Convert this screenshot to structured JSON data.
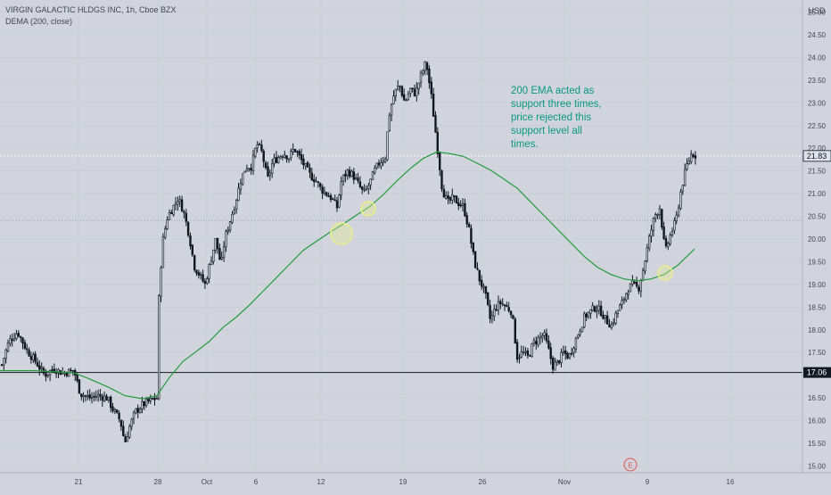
{
  "chart_data": {
    "type": "candlestick",
    "title": "VIRGIN GALACTIC HLDGS INC, 1h, Cboe BZX",
    "indicator_label": "DEMA (200, close)",
    "currency": "USD",
    "annotation": [
      "200 EMA acted as",
      "support three times,",
      "price rejected this",
      "support level all",
      "times."
    ],
    "x_tick_labels": [
      "21",
      "28",
      "Oct",
      "6",
      "12",
      "19",
      "26",
      "Nov",
      "9",
      "16"
    ],
    "y_tick_labels": [
      "15.00",
      "15.50",
      "16.00",
      "16.50",
      "17.00",
      "17.50",
      "18.00",
      "18.50",
      "19.00",
      "19.50",
      "20.00",
      "20.50",
      "21.00",
      "21.50",
      "22.00",
      "22.50",
      "23.00",
      "23.50",
      "24.00",
      "24.50",
      "25.00"
    ],
    "ylim": [
      14.95,
      25.05
    ],
    "last_price": "21.83",
    "support_price": "17.06",
    "earnings_marker": "E",
    "colors": {
      "background": "#d1d4dc",
      "candle": "#131722",
      "ema_line": "#1f9d3a",
      "highlight_circle": "#e8ef8a",
      "annotation_text": "#089981",
      "earnings": "#e05252",
      "axis_text": "#434651"
    },
    "price_path": [
      [
        0,
        17.1
      ],
      [
        10,
        17.75
      ],
      [
        20,
        17.95
      ],
      [
        30,
        17.55
      ],
      [
        40,
        17.3
      ],
      [
        50,
        17.0
      ],
      [
        60,
        17.15
      ],
      [
        70,
        17.05
      ],
      [
        83,
        17.1
      ],
      [
        90,
        16.6
      ],
      [
        100,
        16.5
      ],
      [
        110,
        16.55
      ],
      [
        120,
        16.5
      ],
      [
        128,
        16.2
      ],
      [
        135,
        16.0
      ],
      [
        140,
        15.5
      ],
      [
        145,
        15.85
      ],
      [
        152,
        16.2
      ],
      [
        160,
        16.35
      ],
      [
        170,
        16.45
      ],
      [
        176,
        16.5
      ],
      [
        178,
        18.6
      ],
      [
        182,
        19.9
      ],
      [
        188,
        20.5
      ],
      [
        194,
        20.7
      ],
      [
        200,
        20.9
      ],
      [
        206,
        20.6
      ],
      [
        212,
        20.1
      ],
      [
        218,
        19.4
      ],
      [
        224,
        19.2
      ],
      [
        230,
        19.0
      ],
      [
        236,
        19.5
      ],
      [
        242,
        20.0
      ],
      [
        248,
        19.4
      ],
      [
        252,
        20.0
      ],
      [
        258,
        20.4
      ],
      [
        264,
        20.8
      ],
      [
        270,
        21.3
      ],
      [
        276,
        21.6
      ],
      [
        282,
        21.6
      ],
      [
        288,
        22.1
      ],
      [
        294,
        21.9
      ],
      [
        300,
        21.3
      ],
      [
        306,
        21.7
      ],
      [
        312,
        21.8
      ],
      [
        318,
        21.9
      ],
      [
        324,
        21.8
      ],
      [
        330,
        22.0
      ],
      [
        336,
        21.8
      ],
      [
        342,
        21.6
      ],
      [
        348,
        21.4
      ],
      [
        354,
        21.3
      ],
      [
        360,
        21.1
      ],
      [
        366,
        21.0
      ],
      [
        372,
        20.9
      ],
      [
        378,
        20.7
      ],
      [
        383,
        21.3
      ],
      [
        390,
        21.5
      ],
      [
        396,
        21.4
      ],
      [
        402,
        21.2
      ],
      [
        408,
        21.0
      ],
      [
        414,
        21.2
      ],
      [
        420,
        21.5
      ],
      [
        426,
        21.7
      ],
      [
        432,
        21.8
      ],
      [
        436,
        22.7
      ],
      [
        442,
        23.2
      ],
      [
        448,
        23.4
      ],
      [
        454,
        23.0
      ],
      [
        460,
        23.3
      ],
      [
        466,
        23.2
      ],
      [
        472,
        23.6
      ],
      [
        478,
        23.9
      ],
      [
        484,
        23.1
      ],
      [
        490,
        22.1
      ],
      [
        496,
        21.1
      ],
      [
        502,
        20.8
      ],
      [
        508,
        20.9
      ],
      [
        514,
        20.8
      ],
      [
        520,
        20.7
      ],
      [
        526,
        20.2
      ],
      [
        532,
        19.5
      ],
      [
        538,
        19.1
      ],
      [
        544,
        18.8
      ],
      [
        550,
        18.2
      ],
      [
        556,
        18.5
      ],
      [
        562,
        18.6
      ],
      [
        568,
        18.5
      ],
      [
        574,
        18.4
      ],
      [
        580,
        17.4
      ],
      [
        586,
        17.5
      ],
      [
        592,
        17.4
      ],
      [
        598,
        17.7
      ],
      [
        604,
        17.8
      ],
      [
        610,
        17.9
      ],
      [
        616,
        17.5
      ],
      [
        620,
        17.2
      ],
      [
        626,
        17.3
      ],
      [
        632,
        17.5
      ],
      [
        638,
        17.4
      ],
      [
        644,
        17.7
      ],
      [
        650,
        18.0
      ],
      [
        656,
        18.3
      ],
      [
        662,
        18.4
      ],
      [
        668,
        18.5
      ],
      [
        674,
        18.4
      ],
      [
        680,
        18.2
      ],
      [
        686,
        18.1
      ],
      [
        692,
        18.4
      ],
      [
        698,
        18.6
      ],
      [
        704,
        18.9
      ],
      [
        710,
        19.0
      ],
      [
        716,
        18.9
      ],
      [
        722,
        19.4
      ],
      [
        728,
        20.0
      ],
      [
        734,
        20.5
      ],
      [
        740,
        20.7
      ],
      [
        746,
        19.7
      ],
      [
        752,
        20.1
      ],
      [
        758,
        20.4
      ],
      [
        764,
        21.1
      ],
      [
        770,
        21.6
      ],
      [
        776,
        21.9
      ],
      [
        781,
        21.83
      ]
    ],
    "ema_path": [
      [
        0,
        17.1
      ],
      [
        40,
        17.1
      ],
      [
        83,
        17.05
      ],
      [
        100,
        16.92
      ],
      [
        120,
        16.75
      ],
      [
        140,
        16.55
      ],
      [
        160,
        16.48
      ],
      [
        176,
        16.55
      ],
      [
        190,
        16.95
      ],
      [
        205,
        17.3
      ],
      [
        220,
        17.52
      ],
      [
        235,
        17.75
      ],
      [
        250,
        18.05
      ],
      [
        265,
        18.28
      ],
      [
        280,
        18.55
      ],
      [
        295,
        18.85
      ],
      [
        310,
        19.15
      ],
      [
        325,
        19.45
      ],
      [
        340,
        19.75
      ],
      [
        355,
        19.95
      ],
      [
        370,
        20.15
      ],
      [
        385,
        20.33
      ],
      [
        400,
        20.53
      ],
      [
        415,
        20.72
      ],
      [
        430,
        20.98
      ],
      [
        445,
        21.28
      ],
      [
        460,
        21.55
      ],
      [
        475,
        21.78
      ],
      [
        490,
        21.92
      ],
      [
        505,
        21.88
      ],
      [
        520,
        21.82
      ],
      [
        535,
        21.67
      ],
      [
        550,
        21.52
      ],
      [
        565,
        21.32
      ],
      [
        580,
        21.12
      ],
      [
        595,
        20.82
      ],
      [
        610,
        20.52
      ],
      [
        625,
        20.22
      ],
      [
        640,
        19.92
      ],
      [
        655,
        19.62
      ],
      [
        670,
        19.38
      ],
      [
        685,
        19.22
      ],
      [
        700,
        19.12
      ],
      [
        715,
        19.08
      ],
      [
        730,
        19.12
      ],
      [
        745,
        19.22
      ],
      [
        760,
        19.42
      ],
      [
        779,
        19.78
      ]
    ]
  }
}
